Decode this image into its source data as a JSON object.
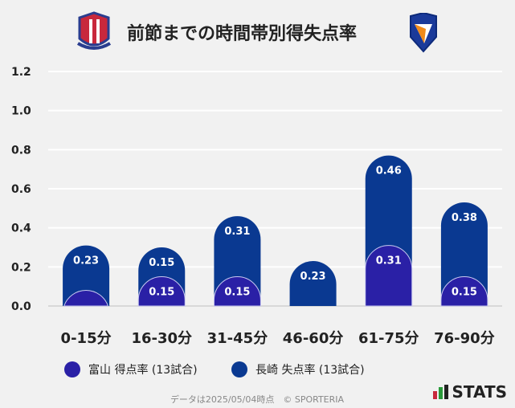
{
  "title": "前節までの時間帯別得失点率",
  "logos": {
    "left": "Kataller Toyama crest",
    "right": "V-VAREN Nagasaki crest"
  },
  "footer": "データは2025/05/04時点　© SPORTERIA",
  "brand": "STATS",
  "chart_data": {
    "type": "bar",
    "categories": [
      "0-15分",
      "16-30分",
      "31-45分",
      "46-60分",
      "61-75分",
      "76-90分"
    ],
    "series": [
      {
        "name": "長崎 失点率 (13試合)",
        "values": [
          0.23,
          0.15,
          0.31,
          0.23,
          0.46,
          0.38
        ],
        "color": "#0a3991"
      },
      {
        "name": "富山 得点率 (13試合)",
        "values": [
          0.08,
          0.15,
          0.15,
          0,
          0.31,
          0.15
        ],
        "color": "#2a20a6"
      }
    ],
    "legend_order": [
      "富山 得点率 (13試合)",
      "長崎 失点率 (13試合)"
    ],
    "yticks": [
      "0.0",
      "0.2",
      "0.4",
      "0.6",
      "0.8",
      "1.0",
      "1.2"
    ],
    "ylim": [
      0,
      1.2
    ],
    "grid": true,
    "legend_position": "bottom-left"
  }
}
